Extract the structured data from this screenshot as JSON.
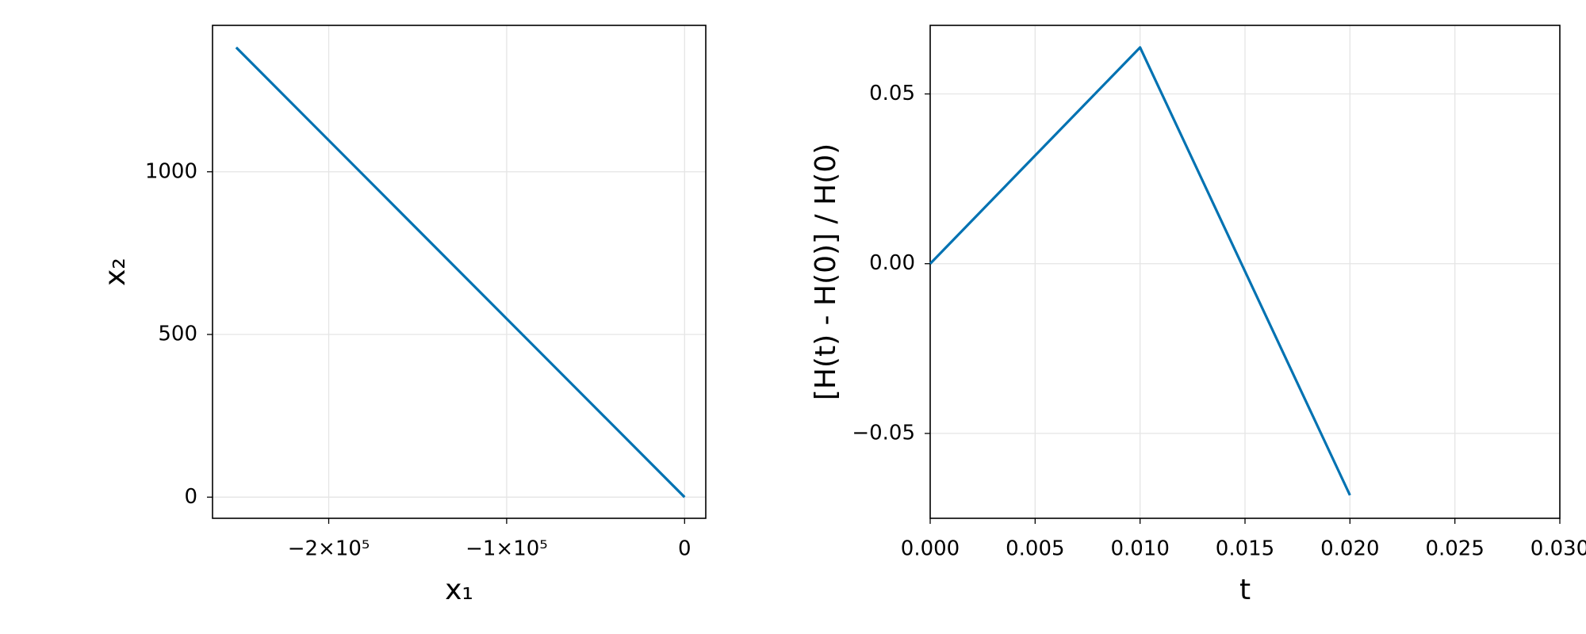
{
  "chart_data": [
    {
      "type": "line",
      "xlabel": "x₁",
      "ylabel": "x₂",
      "x": [
        0,
        -126000,
        -252000
      ],
      "series": [
        {
          "color": "#0072b2",
          "values": [
            0,
            691,
            1382
          ]
        }
      ],
      "xlim": [
        -265300,
        11900
      ],
      "ylim": [
        -65,
        1450
      ],
      "xticks": [
        {
          "value": -200000,
          "label": "−2×10⁵"
        },
        {
          "value": -100000,
          "label": "−1×10⁵"
        },
        0
      ],
      "yticks": [
        0,
        500,
        1000
      ],
      "grid": true
    },
    {
      "type": "line",
      "xlabel": "t",
      "ylabel": "[H(t) - H(0)] / H(0)",
      "x": [
        0,
        0.01,
        0.02
      ],
      "series": [
        {
          "color": "#0072b2",
          "values": [
            0,
            0.0637,
            -0.0682
          ]
        }
      ],
      "xlim": [
        0,
        0.03
      ],
      "ylim": [
        -0.075,
        0.0702
      ],
      "xticks": [
        {
          "value": 0,
          "label": "0.000"
        },
        {
          "value": 0.005,
          "label": "0.005"
        },
        {
          "value": 0.01,
          "label": "0.010"
        },
        {
          "value": 0.015,
          "label": "0.015"
        },
        {
          "value": 0.02,
          "label": "0.020"
        },
        {
          "value": 0.025,
          "label": "0.025"
        },
        {
          "value": 0.03,
          "label": "0.030"
        }
      ],
      "yticks": [
        {
          "value": -0.05,
          "label": "−0.05"
        },
        {
          "value": 0,
          "label": "0.00"
        },
        0.05
      ],
      "grid": true
    }
  ]
}
